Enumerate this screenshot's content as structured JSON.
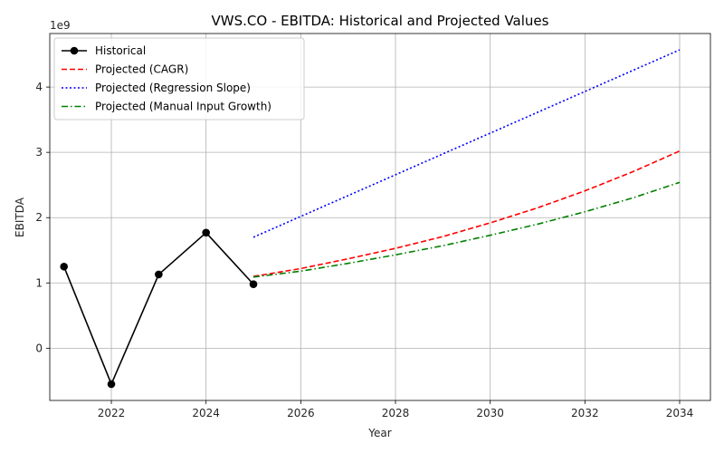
{
  "chart_data": {
    "type": "line",
    "title": "VWS.CO - EBITDA: Historical and Projected Values",
    "xlabel": "Year",
    "ylabel": "EBITDA",
    "y_offset_label": "1e9",
    "xlim": [
      2020.7,
      2034.65
    ],
    "ylim": [
      -0.8,
      4.82
    ],
    "y_scale_multiplier": 1000000000,
    "x_ticks": [
      2022,
      2024,
      2026,
      2028,
      2030,
      2032,
      2034
    ],
    "x_tick_labels": [
      "2022",
      "2024",
      "2026",
      "2028",
      "2030",
      "2032",
      "2034"
    ],
    "y_ticks": [
      0,
      1,
      2,
      3,
      4
    ],
    "y_tick_labels": [
      "0",
      "1",
      "2",
      "3",
      "4"
    ],
    "grid": true,
    "legend_position": "top-left",
    "series": [
      {
        "name": "Historical",
        "color": "#000000",
        "style": "solid",
        "marker": "circle",
        "x": [
          2021,
          2022,
          2023,
          2024,
          2025
        ],
        "y": [
          1.25,
          -0.55,
          1.13,
          1.77,
          0.98
        ]
      },
      {
        "name": "Projected (CAGR)",
        "color": "#ff0000",
        "style": "dashed",
        "marker": "none",
        "x": [
          2025,
          2026,
          2027,
          2028,
          2029,
          2030,
          2031,
          2032,
          2033,
          2034
        ],
        "y": [
          1.1,
          1.22,
          1.37,
          1.53,
          1.71,
          1.92,
          2.15,
          2.41,
          2.7,
          3.02
        ]
      },
      {
        "name": "Projected (Regression Slope)",
        "color": "#0000ff",
        "style": "dotted",
        "marker": "none",
        "x": [
          2025,
          2034
        ],
        "y": [
          1.7,
          4.57
        ]
      },
      {
        "name": "Projected (Manual Input Growth)",
        "color": "#008000",
        "style": "dashdot",
        "marker": "none",
        "x": [
          2025,
          2026,
          2027,
          2028,
          2029,
          2030,
          2031,
          2032,
          2033,
          2034
        ],
        "y": [
          1.09,
          1.18,
          1.3,
          1.43,
          1.57,
          1.73,
          1.9,
          2.09,
          2.3,
          2.54
        ]
      }
    ]
  }
}
